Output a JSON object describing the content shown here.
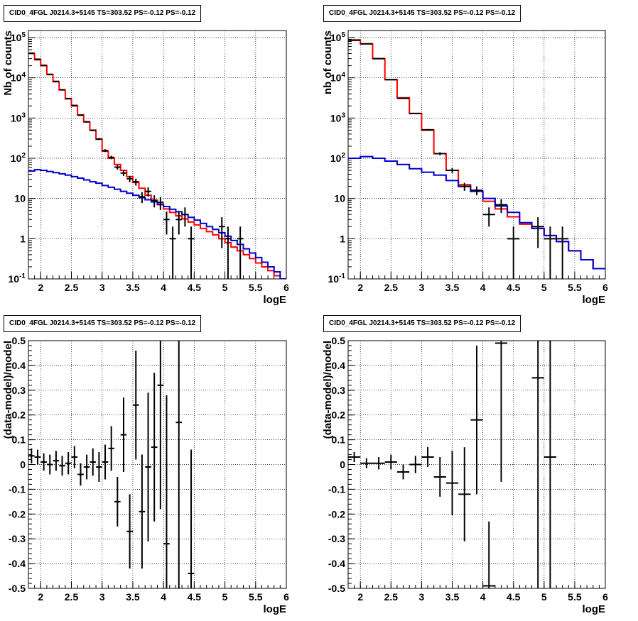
{
  "chart_data": [
    {
      "type": "line",
      "title": "CID0_4FGL J0214.3+5145 TS=303.52 PS=-0.12 PS=-0.12",
      "xlabel": "logE",
      "ylabel": "Nb of counts",
      "ylog": true,
      "xlim": [
        1.8,
        6.0
      ],
      "ylim": [
        0.1,
        150000
      ],
      "xticks": [
        "2",
        "2.5",
        "3",
        "3.5",
        "4",
        "4.5",
        "5",
        "5.5",
        "6"
      ],
      "yticks": [
        "10^-1",
        "1",
        "10",
        "10^2",
        "10^3",
        "10^4",
        "10^5"
      ],
      "grid": true,
      "series": [
        {
          "color": "#ff0000",
          "style": "histogram",
          "bin_width": 0.1,
          "x": [
            1.8,
            1.9,
            2.0,
            2.1,
            2.2,
            2.3,
            2.4,
            2.5,
            2.6,
            2.7,
            2.8,
            2.9,
            3.0,
            3.1,
            3.2,
            3.3,
            3.4,
            3.5,
            3.6,
            3.7,
            3.8,
            3.9,
            4.0,
            4.1,
            4.2,
            4.3,
            4.4,
            4.5,
            4.6,
            4.7,
            4.8,
            4.9,
            5.0,
            5.1,
            5.2,
            5.3,
            5.4,
            5.5,
            5.6,
            5.7,
            5.8,
            5.9
          ],
          "y": [
            40000,
            28000,
            20000,
            12000,
            8000,
            5000,
            3000,
            2000,
            1200,
            800,
            500,
            300,
            150,
            100,
            70,
            50,
            35,
            25,
            18,
            12,
            9,
            7,
            5.5,
            4.5,
            3.7,
            3.1,
            2.6,
            2.2,
            1.8,
            1.5,
            1.25,
            1.0,
            0.8,
            0.62,
            0.5,
            0.4,
            0.32,
            0.25,
            0.2,
            0.16,
            0.12,
            0.1
          ]
        },
        {
          "color": "#0000cc",
          "style": "histogram",
          "bin_width": 0.1,
          "x": [
            1.8,
            1.9,
            2.0,
            2.1,
            2.2,
            2.3,
            2.4,
            2.5,
            2.6,
            2.7,
            2.8,
            2.9,
            3.0,
            3.1,
            3.2,
            3.3,
            3.4,
            3.5,
            3.6,
            3.7,
            3.8,
            3.9,
            4.0,
            4.1,
            4.2,
            4.3,
            4.4,
            4.5,
            4.6,
            4.7,
            4.8,
            4.9,
            5.0,
            5.1,
            5.2,
            5.3,
            5.4,
            5.5,
            5.6,
            5.7,
            5.8,
            5.9
          ],
          "y": [
            48,
            52,
            50,
            47,
            44,
            41,
            38,
            35,
            32,
            29,
            26,
            24,
            21,
            19,
            17,
            15,
            13.5,
            12,
            10.5,
            9.3,
            8.2,
            7.2,
            6.3,
            5.4,
            4.7,
            4.0,
            3.4,
            2.9,
            2.4,
            2.0,
            1.7,
            1.4,
            1.15,
            0.9,
            0.72,
            0.56,
            0.44,
            0.34,
            0.26,
            0.2,
            0.15,
            0.1
          ]
        },
        {
          "color": "#000000",
          "style": "points",
          "x": [
            1.85,
            1.95,
            2.05,
            2.15,
            2.25,
            2.35,
            2.45,
            2.55,
            2.65,
            2.75,
            2.85,
            2.95,
            3.05,
            3.15,
            3.25,
            3.35,
            3.45,
            3.55,
            3.65,
            3.75,
            3.85,
            3.95,
            4.05,
            4.15,
            4.25,
            4.35,
            4.45,
            4.55,
            4.65,
            4.75,
            4.85,
            4.95,
            5.05,
            5.15,
            5.25
          ],
          "y": [
            41000,
            29000,
            20500,
            12200,
            8150,
            5050,
            3050,
            2060,
            1180,
            805,
            495,
            300,
            155,
            105,
            60,
            43,
            31,
            26,
            11,
            15,
            9,
            8,
            3,
            1,
            3,
            4,
            1,
            null,
            null,
            null,
            null,
            2,
            1,
            null,
            1
          ]
        }
      ]
    },
    {
      "type": "line",
      "title": "CID0_4FGL J0214.3+5145 TS=303.52 PS=-0.12 PS=-0.12",
      "xlabel": "logE",
      "ylabel": "nb of counts",
      "ylog": true,
      "xlim": [
        1.8,
        6.0
      ],
      "ylim": [
        0.1,
        150000
      ],
      "xticks": [
        "2",
        "2.5",
        "3",
        "3.5",
        "4",
        "4.5",
        "5",
        "5.5",
        "6"
      ],
      "yticks": [
        "10^-1",
        "1",
        "10",
        "10^2",
        "10^3",
        "10^4",
        "10^5"
      ],
      "grid": true,
      "series": [
        {
          "color": "#ff0000",
          "style": "histogram",
          "bin_width": 0.2,
          "x": [
            1.8,
            2.0,
            2.2,
            2.4,
            2.6,
            2.8,
            3.0,
            3.2,
            3.4,
            3.6,
            3.8,
            4.0,
            4.2,
            4.4,
            4.6,
            4.8,
            5.0,
            5.2,
            5.4,
            5.6,
            5.8
          ],
          "y": [
            85000,
            70000,
            30000,
            9000,
            3200,
            1300,
            500,
            130,
            50,
            22,
            15,
            8.5,
            5.5,
            3.5,
            2.3,
            1.8,
            1.2,
            0.85,
            0.5,
            0.3,
            0.18
          ]
        },
        {
          "color": "#0000cc",
          "style": "histogram",
          "bin_width": 0.2,
          "x": [
            1.8,
            2.0,
            2.2,
            2.4,
            2.6,
            2.8,
            3.0,
            3.2,
            3.4,
            3.6,
            3.8,
            4.0,
            4.2,
            4.4,
            4.6,
            4.8,
            5.0,
            5.2,
            5.4,
            5.6,
            5.8
          ],
          "y": [
            100,
            110,
            100,
            85,
            70,
            55,
            45,
            38,
            28,
            20,
            15,
            10,
            6.5,
            4.5,
            2.5,
            1.8,
            1.2,
            0.85,
            0.5,
            0.3,
            0.18
          ]
        },
        {
          "color": "#000000",
          "style": "points",
          "x": [
            1.9,
            2.1,
            2.3,
            2.5,
            2.7,
            2.9,
            3.1,
            3.3,
            3.5,
            3.7,
            3.9,
            4.1,
            4.3,
            4.5,
            4.7,
            4.9,
            5.1,
            5.3
          ],
          "y": [
            87000,
            70000,
            30000,
            9000,
            3100,
            1300,
            510,
            130,
            50,
            20,
            16,
            4,
            7,
            1,
            null,
            2,
            1,
            1
          ]
        }
      ]
    },
    {
      "type": "scatter",
      "title": "CID0_4FGL J0214.3+5145 TS=303.52 PS=-0.12 PS=-0.12",
      "xlabel": "logE",
      "ylabel": "(data-model)/model",
      "xlim": [
        1.8,
        6.0
      ],
      "ylim": [
        -0.5,
        0.5
      ],
      "xticks": [
        "2",
        "2.5",
        "3",
        "3.5",
        "4",
        "4.5",
        "5",
        "5.5",
        "6"
      ],
      "yticks": [
        "-0.5",
        "-0.4",
        "-0.3",
        "-0.2",
        "-0.1",
        "0",
        "0.1",
        "0.2",
        "0.3",
        "0.4",
        "0.5"
      ],
      "grid": true,
      "points": {
        "x": [
          1.85,
          1.95,
          2.05,
          2.15,
          2.25,
          2.35,
          2.45,
          2.55,
          2.65,
          2.75,
          2.85,
          2.95,
          3.05,
          3.15,
          3.25,
          3.35,
          3.45,
          3.55,
          3.65,
          3.75,
          3.85,
          3.95,
          4.05,
          4.25,
          4.45
        ],
        "y": [
          0.035,
          0.03,
          0.01,
          0.0,
          0.015,
          -0.005,
          0.005,
          0.03,
          -0.04,
          -0.01,
          0.01,
          -0.01,
          0.01,
          0.065,
          -0.15,
          0.12,
          -0.27,
          0.24,
          -0.19,
          -0.01,
          0.07,
          0.32,
          -0.32,
          0.17,
          -0.44
        ],
        "err": [
          0.03,
          0.03,
          0.035,
          0.04,
          0.04,
          0.04,
          0.045,
          0.045,
          0.045,
          0.05,
          0.055,
          0.06,
          0.07,
          0.09,
          0.1,
          0.15,
          0.15,
          0.22,
          0.23,
          0.3,
          0.3,
          0.5,
          0.6,
          0.7,
          0.5
        ]
      }
    },
    {
      "type": "scatter",
      "title": "CID0_4FGL J0214.3+5145 TS=303.52 PS=-0.12 PS=-0.12",
      "xlabel": "logE",
      "ylabel": "(data-model)/model",
      "xlim": [
        1.8,
        6.0
      ],
      "ylim": [
        -0.5,
        0.5
      ],
      "xticks": [
        "2",
        "2.5",
        "3",
        "3.5",
        "4",
        "4.5",
        "5",
        "5.5",
        "6"
      ],
      "yticks": [
        "-0.5",
        "-0.4",
        "-0.3",
        "-0.2",
        "-0.1",
        "0",
        "0.1",
        "0.2",
        "0.3",
        "0.4",
        "0.5"
      ],
      "grid": true,
      "points": {
        "x": [
          1.9,
          2.1,
          2.3,
          2.5,
          2.7,
          2.9,
          3.1,
          3.3,
          3.5,
          3.7,
          3.9,
          4.1,
          4.3,
          4.9,
          5.1
        ],
        "y": [
          0.03,
          0.005,
          0.005,
          0.01,
          -0.03,
          0.0,
          0.03,
          -0.05,
          -0.075,
          -0.12,
          0.18,
          -0.49,
          0.49,
          0.35,
          0.03
        ],
        "err": [
          0.02,
          0.02,
          0.025,
          0.03,
          0.03,
          0.035,
          0.04,
          0.08,
          0.13,
          0.19,
          0.3,
          0.26,
          0.56,
          1.0,
          1.0
        ]
      }
    }
  ]
}
